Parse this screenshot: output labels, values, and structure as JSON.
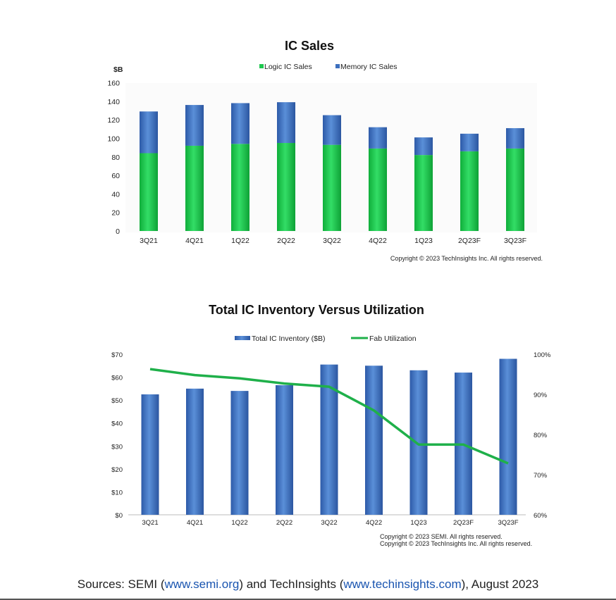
{
  "chart_data": [
    {
      "type": "bar",
      "stacked": true,
      "title": "IC Sales",
      "ylabel": "$B",
      "ylim": [
        0,
        160
      ],
      "yticks": [
        "0",
        "20",
        "40",
        "60",
        "80",
        "100",
        "120",
        "140",
        "160"
      ],
      "categories": [
        "3Q21",
        "4Q21",
        "1Q22",
        "2Q22",
        "3Q22",
        "4Q22",
        "1Q23",
        "2Q23F",
        "3Q23F"
      ],
      "series": [
        {
          "name": "Logic IC Sales",
          "color": "#1ec84e",
          "values": [
            84,
            92,
            94,
            95,
            93,
            89,
            82,
            86,
            89
          ]
        },
        {
          "name": "Memory IC Sales",
          "color": "#3c6fbe",
          "values": [
            45,
            44,
            44,
            44,
            32,
            23,
            19,
            19,
            22
          ]
        }
      ],
      "legend_position": "top",
      "grid": false,
      "copyright": "Copyright © 2023 TechInsights Inc.  All rights reserved."
    },
    {
      "type": "bar+line",
      "title": "Total IC Inventory Versus Utilization",
      "categories": [
        "3Q21",
        "4Q21",
        "1Q22",
        "2Q22",
        "3Q22",
        "4Q22",
        "1Q23",
        "2Q23F",
        "3Q23F"
      ],
      "ylim": [
        0,
        70
      ],
      "yticks": [
        "$0",
        "$10",
        "$20",
        "$30",
        "$40",
        "$50",
        "$60",
        "$70"
      ],
      "y2lim": [
        60,
        100
      ],
      "y2ticks": [
        "60%",
        "70%",
        "80%",
        "90%",
        "100%"
      ],
      "series": [
        {
          "name": "Total IC Inventory ($B)",
          "type": "bar",
          "axis": "left",
          "color": "#3c6fbe",
          "values": [
            52.5,
            55,
            54,
            56.5,
            65.5,
            65,
            63,
            62,
            68
          ]
        },
        {
          "name": "Fab Utilization",
          "type": "line",
          "axis": "right",
          "color": "#1fb04a",
          "values": [
            96.3,
            94.8,
            94.0,
            92.7,
            91.9,
            86.0,
            77.5,
            77.5,
            72.8
          ]
        }
      ],
      "legend_position": "top",
      "grid": false,
      "copyright_lines": [
        "Copyright © 2023 SEMI.  All rights reserved.",
        "Copyright © 2023 TechInsights Inc.  All rights reserved."
      ]
    }
  ],
  "sources": {
    "prefix": "Sources: SEMI (",
    "link1": "www.semi.org",
    "middle": ") and TechInsights (",
    "link2": "www.techinsights.com",
    "suffix": "), August 2023"
  }
}
